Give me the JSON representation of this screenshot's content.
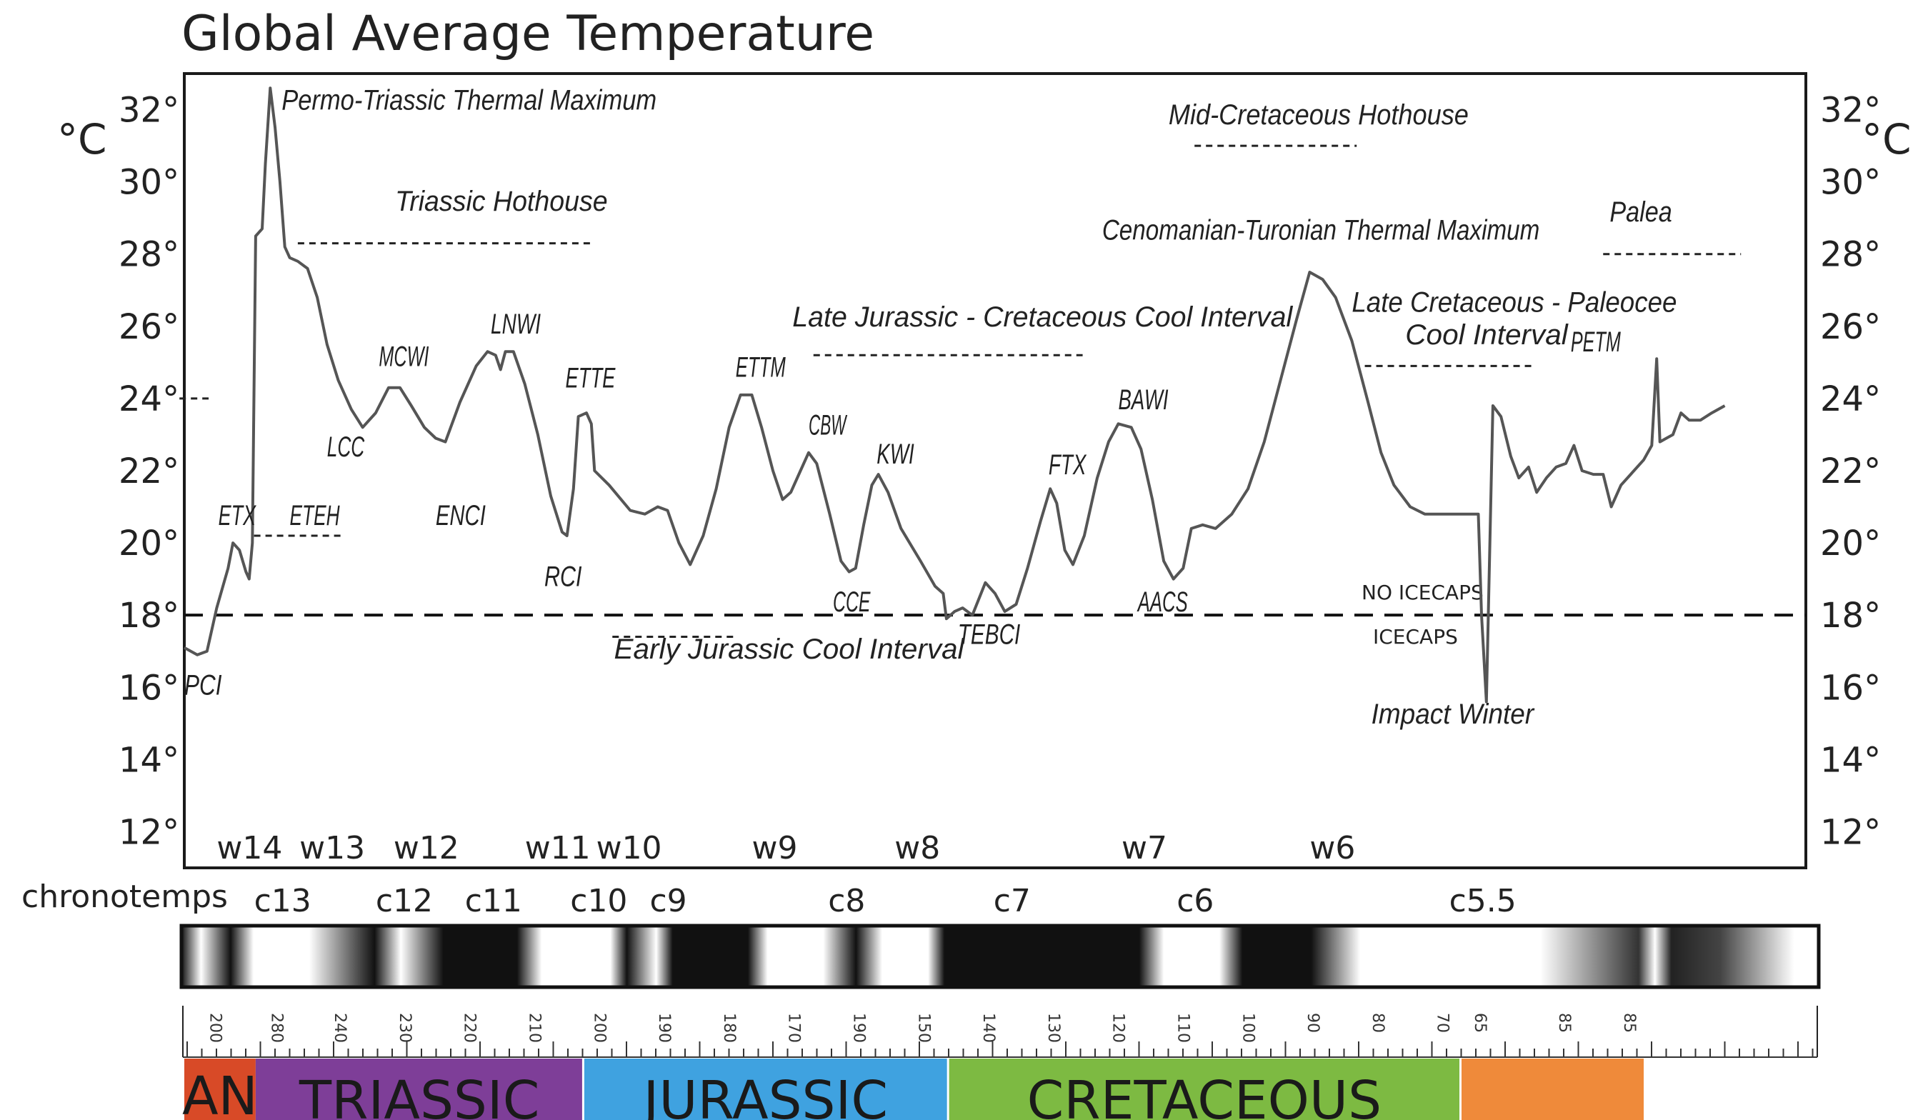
{
  "chart_data": {
    "type": "line",
    "title": "Global Average Temperature",
    "ylabel": "°C",
    "ylabel_right": "°C",
    "ylim": [
      11,
      33
    ],
    "y_ticks": [
      "32°",
      "30°",
      "28°",
      "26°",
      "24°",
      "22°",
      "20°",
      "18°",
      "16°",
      "14°",
      "12°"
    ],
    "y_tick_values": [
      32,
      30,
      28,
      26,
      24,
      22,
      20,
      18,
      16,
      14,
      12
    ],
    "x_scale": "horizontal position in the figure, 0 = left edge of plot, 100 = right edge (the age axis is drawn with a nonuniform, broken scale)",
    "series": [
      {
        "points": [
          [
            0,
            17.1
          ],
          [
            0.8,
            16.9
          ],
          [
            1.4,
            17.0
          ],
          [
            2.0,
            18.2
          ],
          [
            2.7,
            19.3
          ],
          [
            3.0,
            20.0
          ],
          [
            3.4,
            19.8
          ],
          [
            3.8,
            19.2
          ],
          [
            4.0,
            19.0
          ],
          [
            4.2,
            20.0
          ],
          [
            4.4,
            28.5
          ],
          [
            4.6,
            28.6
          ],
          [
            4.8,
            28.7
          ],
          [
            5.0,
            30.5
          ],
          [
            5.3,
            32.6
          ],
          [
            5.6,
            31.5
          ],
          [
            5.9,
            30.0
          ],
          [
            6.2,
            28.2
          ],
          [
            6.5,
            27.9
          ],
          [
            7.0,
            27.8
          ],
          [
            7.6,
            27.6
          ],
          [
            8.2,
            26.8
          ],
          [
            8.8,
            25.5
          ],
          [
            9.5,
            24.5
          ],
          [
            10.3,
            23.7
          ],
          [
            11.0,
            23.2
          ],
          [
            11.8,
            23.6
          ],
          [
            12.6,
            24.3
          ],
          [
            13.3,
            24.3
          ],
          [
            14.0,
            23.8
          ],
          [
            14.8,
            23.2
          ],
          [
            15.5,
            22.9
          ],
          [
            16.1,
            22.8
          ],
          [
            17.0,
            23.9
          ],
          [
            18.0,
            24.9
          ],
          [
            18.7,
            25.3
          ],
          [
            19.2,
            25.2
          ],
          [
            19.5,
            24.8
          ],
          [
            19.8,
            25.3
          ],
          [
            20.3,
            25.3
          ],
          [
            21.0,
            24.4
          ],
          [
            21.8,
            23.0
          ],
          [
            22.6,
            21.3
          ],
          [
            23.3,
            20.3
          ],
          [
            23.6,
            20.2
          ],
          [
            24.0,
            21.5
          ],
          [
            24.3,
            23.5
          ],
          [
            24.8,
            23.6
          ],
          [
            25.1,
            23.3
          ],
          [
            25.3,
            22.0
          ],
          [
            26.2,
            21.6
          ],
          [
            27.5,
            20.9
          ],
          [
            28.4,
            20.8
          ],
          [
            29.2,
            21.0
          ],
          [
            29.8,
            20.9
          ],
          [
            30.5,
            20.0
          ],
          [
            31.2,
            19.4
          ],
          [
            32.0,
            20.2
          ],
          [
            32.8,
            21.5
          ],
          [
            33.6,
            23.2
          ],
          [
            34.3,
            24.1
          ],
          [
            35.0,
            24.1
          ],
          [
            35.6,
            23.2
          ],
          [
            36.3,
            22.0
          ],
          [
            36.9,
            21.2
          ],
          [
            37.4,
            21.4
          ],
          [
            38.0,
            22.0
          ],
          [
            38.5,
            22.5
          ],
          [
            39.0,
            22.2
          ],
          [
            39.8,
            20.8
          ],
          [
            40.5,
            19.5
          ],
          [
            41.0,
            19.2
          ],
          [
            41.4,
            19.3
          ],
          [
            41.9,
            20.5
          ],
          [
            42.4,
            21.6
          ],
          [
            42.8,
            21.9
          ],
          [
            43.4,
            21.4
          ],
          [
            44.2,
            20.4
          ],
          [
            45.4,
            19.5
          ],
          [
            46.3,
            18.8
          ],
          [
            46.8,
            18.6
          ],
          [
            47.0,
            17.9
          ],
          [
            47.5,
            18.1
          ],
          [
            48.0,
            18.2
          ],
          [
            48.6,
            18.0
          ],
          [
            49.4,
            18.9
          ],
          [
            50.0,
            18.6
          ],
          [
            50.6,
            18.1
          ],
          [
            51.3,
            18.3
          ],
          [
            52.0,
            19.3
          ],
          [
            52.8,
            20.6
          ],
          [
            53.4,
            21.5
          ],
          [
            53.8,
            21.1
          ],
          [
            54.3,
            19.8
          ],
          [
            54.8,
            19.4
          ],
          [
            55.5,
            20.2
          ],
          [
            56.3,
            21.8
          ],
          [
            57.0,
            22.8
          ],
          [
            57.6,
            23.3
          ],
          [
            58.4,
            23.2
          ],
          [
            59.0,
            22.6
          ],
          [
            59.7,
            21.2
          ],
          [
            60.4,
            19.5
          ],
          [
            61.0,
            19.0
          ],
          [
            61.6,
            19.3
          ],
          [
            62.1,
            20.4
          ],
          [
            62.8,
            20.5
          ],
          [
            63.6,
            20.4
          ],
          [
            64.6,
            20.8
          ],
          [
            65.6,
            21.5
          ],
          [
            66.6,
            22.8
          ],
          [
            67.6,
            24.5
          ],
          [
            68.6,
            26.2
          ],
          [
            69.4,
            27.5
          ],
          [
            70.2,
            27.3
          ],
          [
            71.0,
            26.8
          ],
          [
            72.0,
            25.6
          ],
          [
            73.0,
            23.9
          ],
          [
            73.8,
            22.5
          ],
          [
            74.6,
            21.6
          ],
          [
            75.6,
            21.0
          ],
          [
            76.5,
            20.8
          ],
          [
            78.0,
            20.8
          ],
          [
            79.8,
            20.8
          ],
          [
            80.0,
            18.0
          ],
          [
            80.3,
            15.6
          ],
          [
            80.7,
            23.8
          ],
          [
            81.2,
            23.5
          ],
          [
            81.8,
            22.4
          ],
          [
            82.3,
            21.8
          ],
          [
            82.9,
            22.1
          ],
          [
            83.4,
            21.4
          ],
          [
            84.0,
            21.8
          ],
          [
            84.6,
            22.1
          ],
          [
            85.2,
            22.2
          ],
          [
            85.7,
            22.7
          ],
          [
            86.2,
            22.0
          ],
          [
            86.9,
            21.9
          ],
          [
            87.5,
            21.9
          ],
          [
            88.0,
            21.0
          ],
          [
            88.6,
            21.6
          ],
          [
            89.2,
            21.9
          ],
          [
            90.0,
            22.3
          ],
          [
            90.5,
            22.7
          ],
          [
            90.8,
            25.1
          ],
          [
            91.0,
            22.8
          ],
          [
            91.4,
            22.9
          ],
          [
            91.8,
            23.0
          ],
          [
            92.3,
            23.6
          ],
          [
            92.8,
            23.4
          ],
          [
            93.5,
            23.4
          ],
          [
            94.2,
            23.6
          ],
          [
            95.0,
            23.8
          ]
        ]
      }
    ],
    "reference_line": {
      "y": 18,
      "label_above": "NO ICECAPS",
      "label_below": "ICECAPS"
    },
    "annotations": [
      {
        "text": "Permo-Triassic Thermal Maximum",
        "x": 6.0,
        "y": 32.0
      },
      {
        "text": "Triassic Hothouse",
        "x": 13.0,
        "y": 29.2
      },
      {
        "text": "MCWI",
        "x": 12.0,
        "y": 24.9
      },
      {
        "text": "LNWI",
        "x": 18.9,
        "y": 25.8
      },
      {
        "text": "ETTE",
        "x": 23.5,
        "y": 24.3
      },
      {
        "text": "ETTM",
        "x": 34.0,
        "y": 24.6
      },
      {
        "text": "CBW",
        "x": 38.5,
        "y": 23.0
      },
      {
        "text": "KWI",
        "x": 42.7,
        "y": 22.2
      },
      {
        "text": "FTX",
        "x": 53.3,
        "y": 21.9
      },
      {
        "text": "BAWI",
        "x": 57.6,
        "y": 23.7
      },
      {
        "text": "Late Jurassic - Cretaceous Cool Interval",
        "x": 37.5,
        "y": 26.0
      },
      {
        "text": "Mid-Cretaceous  Hothouse",
        "x": 60.7,
        "y": 31.6
      },
      {
        "text": "Cenomanian-Turonian Thermal Maximum",
        "x": 56.6,
        "y": 28.4
      },
      {
        "text": "Late Cretaceous - Paleocee",
        "x": 72.0,
        "y": 26.4
      },
      {
        "text": "Cool Interval",
        "x": 75.3,
        "y": 25.5
      },
      {
        "text": "PETM",
        "x": 85.5,
        "y": 25.3
      },
      {
        "text": "Palea",
        "x": 87.9,
        "y": 28.9
      },
      {
        "text": "ETX",
        "x": 2.1,
        "y": 20.5
      },
      {
        "text": "ETEH",
        "x": 6.5,
        "y": 20.5
      },
      {
        "text": "LCC",
        "x": 8.8,
        "y": 22.4
      },
      {
        "text": "ENCI",
        "x": 15.5,
        "y": 20.5
      },
      {
        "text": "RCI",
        "x": 22.2,
        "y": 18.8
      },
      {
        "text": "CCE",
        "x": 40.0,
        "y": 18.1
      },
      {
        "text": "TEBCI",
        "x": 47.7,
        "y": 17.2
      },
      {
        "text": "AACS",
        "x": 58.8,
        "y": 18.1
      },
      {
        "text": "Early Jurassic Cool Interval",
        "x": 26.5,
        "y": 16.8
      },
      {
        "text": "PCI",
        "x": 0.0,
        "y": 15.8
      },
      {
        "text": "Impact Winter",
        "x": 73.2,
        "y": 15.0
      }
    ],
    "dashed_intervals": [
      {
        "y": 24.0,
        "x0": -0.3,
        "x1": 1.5
      },
      {
        "y": 28.3,
        "x0": 7.0,
        "x1": 25.3
      },
      {
        "y": 20.2,
        "x0": 4.3,
        "x1": 9.8
      },
      {
        "y": 17.4,
        "x0": 26.4,
        "x1": 34.0
      },
      {
        "y": 25.2,
        "x0": 38.8,
        "x1": 55.4
      },
      {
        "y": 31.0,
        "x0": 62.3,
        "x1": 72.3
      },
      {
        "y": 24.9,
        "x0": 72.8,
        "x1": 83.2
      },
      {
        "y": 28.0,
        "x0": 87.5,
        "x1": 96.0
      }
    ],
    "warm_intervals": [
      {
        "label": "w14",
        "x": 2.0
      },
      {
        "label": "w13",
        "x": 7.1
      },
      {
        "label": "w12",
        "x": 12.9
      },
      {
        "label": "w11",
        "x": 21.0
      },
      {
        "label": "w10",
        "x": 25.4
      },
      {
        "label": "w9",
        "x": 35.0
      },
      {
        "label": "w8",
        "x": 43.8
      },
      {
        "label": "w7",
        "x": 57.8
      },
      {
        "label": "w6",
        "x": 69.4
      }
    ],
    "chronotemps": {
      "label": "chronotemps",
      "items": [
        {
          "label": "c13",
          "x": 4.3
        },
        {
          "label": "c12",
          "x": 11.8
        },
        {
          "label": "c11",
          "x": 17.3
        },
        {
          "label": "c10",
          "x": 23.8
        },
        {
          "label": "c9",
          "x": 28.7
        },
        {
          "label": "c8",
          "x": 39.7
        },
        {
          "label": "c7",
          "x": 49.9
        },
        {
          "label": "c6",
          "x": 61.2
        },
        {
          "label": "c5.5",
          "x": 78.0
        }
      ]
    },
    "age_ticks": [
      {
        "label": "200",
        "x": 1.6
      },
      {
        "label": "280",
        "x": 5.4
      },
      {
        "label": "240",
        "x": 9.3
      },
      {
        "label": "230",
        "x": 13.3
      },
      {
        "label": "220",
        "x": 17.3
      },
      {
        "label": "210",
        "x": 21.3
      },
      {
        "label": "200",
        "x": 25.3
      },
      {
        "label": "190",
        "x": 29.3
      },
      {
        "label": "180",
        "x": 33.3
      },
      {
        "label": "170",
        "x": 37.3
      },
      {
        "label": "190",
        "x": 41.3
      },
      {
        "label": "150",
        "x": 45.3
      },
      {
        "label": "140",
        "x": 49.3
      },
      {
        "label": "130",
        "x": 53.3
      },
      {
        "label": "120",
        "x": 57.3
      },
      {
        "label": "110",
        "x": 61.3
      },
      {
        "label": "100",
        "x": 65.3
      },
      {
        "label": "90",
        "x": 69.3
      },
      {
        "label": "80",
        "x": 73.3
      },
      {
        "label": "70",
        "x": 77.3
      },
      {
        "label": "65",
        "x": 79.6
      },
      {
        "label": "85",
        "x": 84.8
      },
      {
        "label": "85",
        "x": 88.8
      }
    ],
    "periods": [
      {
        "label": "AN",
        "x0": 0,
        "x1": 4.4,
        "color": "#d84a27"
      },
      {
        "label": "TRIASSIC",
        "x0": 4.4,
        "x1": 24.6,
        "color": "#7e3e98"
      },
      {
        "label": "JURASSIC",
        "x0": 24.6,
        "x1": 47.1,
        "color": "#3fa2e0"
      },
      {
        "label": "CRETACEOUS",
        "x0": 47.1,
        "x1": 78.7,
        "color": "#7dba42"
      },
      {
        "label": "",
        "x0": 78.7,
        "x1": 90.0,
        "color": "#ef8a3a"
      }
    ]
  }
}
